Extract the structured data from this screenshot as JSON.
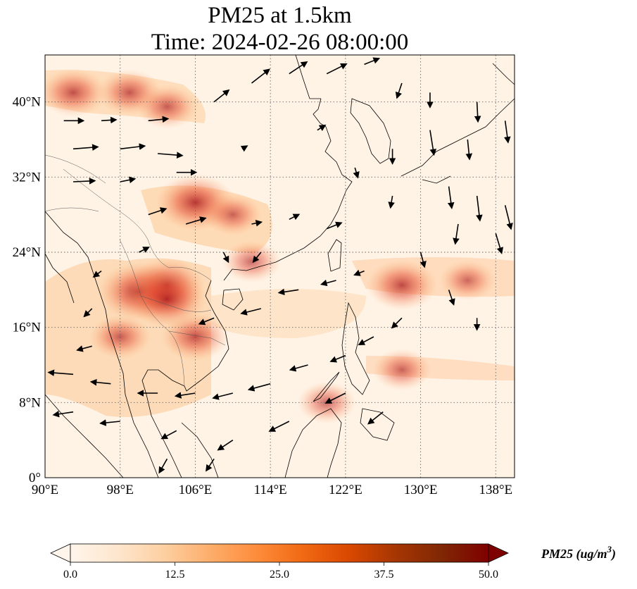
{
  "title": {
    "line1": "PM25 at 1.5km",
    "line2": "Time: 2024-02-26 08:00:00"
  },
  "map": {
    "extent": {
      "lon_min": 90,
      "lon_max": 140,
      "lat_min": 0,
      "lat_max": 45
    },
    "gridlines": "dotted",
    "x_ticks": [
      {
        "lon": 90,
        "label": "90°E"
      },
      {
        "lon": 98,
        "label": "98°E"
      },
      {
        "lon": 106,
        "label": "106°E"
      },
      {
        "lon": 114,
        "label": "114°E"
      },
      {
        "lon": 122,
        "label": "122°E"
      },
      {
        "lon": 130,
        "label": "130°E"
      },
      {
        "lon": 138,
        "label": "138°E"
      }
    ],
    "y_ticks": [
      {
        "lat": 0,
        "label": "0°"
      },
      {
        "lat": 8,
        "label": "8°N"
      },
      {
        "lat": 16,
        "label": "16°N"
      },
      {
        "lat": 24,
        "label": "24°N"
      },
      {
        "lat": 32,
        "label": "32°N"
      },
      {
        "lat": 40,
        "label": "40°N"
      }
    ],
    "hotspots": [
      {
        "lon": 93,
        "lat": 41,
        "intensity": 0.55
      },
      {
        "lon": 99,
        "lat": 41,
        "intensity": 0.5
      },
      {
        "lon": 103,
        "lat": 39.5,
        "intensity": 0.45
      },
      {
        "lon": 106,
        "lat": 29.3,
        "intensity": 0.75
      },
      {
        "lon": 110,
        "lat": 28,
        "intensity": 0.4
      },
      {
        "lon": 100,
        "lat": 19.8,
        "intensity": 0.8
      },
      {
        "lon": 103,
        "lat": 20.5,
        "intensity": 0.7
      },
      {
        "lon": 103,
        "lat": 19,
        "intensity": 0.75
      },
      {
        "lon": 106,
        "lat": 15,
        "intensity": 0.55
      },
      {
        "lon": 98,
        "lat": 15,
        "intensity": 0.45
      },
      {
        "lon": 128,
        "lat": 20.5,
        "intensity": 0.6
      },
      {
        "lon": 135,
        "lat": 21,
        "intensity": 0.35
      },
      {
        "lon": 128,
        "lat": 11.5,
        "intensity": 0.4
      },
      {
        "lon": 112,
        "lat": 23,
        "intensity": 0.4
      },
      {
        "lon": 120,
        "lat": 8,
        "intensity": 0.4
      }
    ],
    "wind_vectors": [
      {
        "lon": 92,
        "lat": 38,
        "u": 2,
        "v": 0
      },
      {
        "lon": 96,
        "lat": 38,
        "u": 1.5,
        "v": 0.1
      },
      {
        "lon": 101,
        "lat": 38,
        "u": 2,
        "v": 0.2
      },
      {
        "lon": 93,
        "lat": 35,
        "u": 2.5,
        "v": 0.2
      },
      {
        "lon": 98,
        "lat": 35,
        "u": 2.5,
        "v": 0.3
      },
      {
        "lon": 102,
        "lat": 34.5,
        "u": 2.5,
        "v": -0.2
      },
      {
        "lon": 93,
        "lat": 31.5,
        "u": 2.2,
        "v": 0.1
      },
      {
        "lon": 98,
        "lat": 31.5,
        "u": 1.5,
        "v": 0.3
      },
      {
        "lon": 104,
        "lat": 32.5,
        "u": 2,
        "v": 0
      },
      {
        "lon": 101,
        "lat": 28,
        "u": 1.8,
        "v": 0.6
      },
      {
        "lon": 105,
        "lat": 27,
        "u": 2,
        "v": 0.6
      },
      {
        "lon": 112,
        "lat": 27,
        "u": 1,
        "v": 0.2
      },
      {
        "lon": 116,
        "lat": 27.5,
        "u": 1,
        "v": 0.5
      },
      {
        "lon": 120,
        "lat": 26.5,
        "u": 1.5,
        "v": 0.6
      },
      {
        "lon": 108,
        "lat": 40,
        "u": 1.5,
        "v": 1.2
      },
      {
        "lon": 112,
        "lat": 42,
        "u": 1.8,
        "v": 1.4
      },
      {
        "lon": 116,
        "lat": 43,
        "u": 1.8,
        "v": 1.2
      },
      {
        "lon": 120,
        "lat": 43,
        "u": 2,
        "v": 1
      },
      {
        "lon": 124,
        "lat": 44,
        "u": 1.5,
        "v": 0.6
      },
      {
        "lon": 128,
        "lat": 42,
        "u": -0.5,
        "v": -1.5
      },
      {
        "lon": 131,
        "lat": 41,
        "u": 0,
        "v": -1.5
      },
      {
        "lon": 136,
        "lat": 40,
        "u": 0.1,
        "v": -2
      },
      {
        "lon": 131,
        "lat": 37,
        "u": 0.4,
        "v": -2.5
      },
      {
        "lon": 135,
        "lat": 36,
        "u": 0.2,
        "v": -2
      },
      {
        "lon": 139,
        "lat": 38,
        "u": 0.3,
        "v": -2.2
      },
      {
        "lon": 133,
        "lat": 31,
        "u": 0.3,
        "v": -2.2
      },
      {
        "lon": 136,
        "lat": 30,
        "u": 0.3,
        "v": -2.5
      },
      {
        "lon": 139,
        "lat": 29,
        "u": 0.6,
        "v": -2.4
      },
      {
        "lon": 134,
        "lat": 27,
        "u": -0.3,
        "v": -2
      },
      {
        "lon": 138,
        "lat": 26,
        "u": 0.6,
        "v": -2
      },
      {
        "lon": 130,
        "lat": 24,
        "u": 0.4,
        "v": -1.5
      },
      {
        "lon": 133,
        "lat": 20,
        "u": 0.5,
        "v": -1.5
      },
      {
        "lon": 136,
        "lat": 17,
        "u": 0,
        "v": -1.2
      },
      {
        "lon": 128,
        "lat": 17,
        "u": -1,
        "v": -1
      },
      {
        "lon": 125,
        "lat": 15,
        "u": -1.5,
        "v": -0.8
      },
      {
        "lon": 122,
        "lat": 13,
        "u": -1.5,
        "v": -0.6
      },
      {
        "lon": 118,
        "lat": 12,
        "u": -1.8,
        "v": -0.5
      },
      {
        "lon": 114,
        "lat": 10,
        "u": -2.2,
        "v": -0.6
      },
      {
        "lon": 110,
        "lat": 9,
        "u": -2,
        "v": -0.5
      },
      {
        "lon": 106,
        "lat": 9,
        "u": -2,
        "v": -0.3
      },
      {
        "lon": 102,
        "lat": 9,
        "u": -2,
        "v": 0
      },
      {
        "lon": 97,
        "lat": 10,
        "u": -2,
        "v": 0.2
      },
      {
        "lon": 93,
        "lat": 11,
        "u": -2.5,
        "v": 0.2
      },
      {
        "lon": 93,
        "lat": 7,
        "u": -2,
        "v": -0.3
      },
      {
        "lon": 98,
        "lat": 6,
        "u": -2,
        "v": -0.2
      },
      {
        "lon": 104,
        "lat": 5,
        "u": -1.5,
        "v": -0.8
      },
      {
        "lon": 110,
        "lat": 4,
        "u": -1.5,
        "v": -1
      },
      {
        "lon": 116,
        "lat": 6,
        "u": -2,
        "v": -1
      },
      {
        "lon": 122,
        "lat": 9,
        "u": -2,
        "v": -1
      },
      {
        "lon": 126,
        "lat": 7,
        "u": -1.5,
        "v": -1.2
      },
      {
        "lon": 108,
        "lat": 17,
        "u": -1.5,
        "v": -0.6
      },
      {
        "lon": 113,
        "lat": 18,
        "u": -2,
        "v": -0.5
      },
      {
        "lon": 117,
        "lat": 20,
        "u": -2,
        "v": -0.3
      },
      {
        "lon": 121,
        "lat": 21,
        "u": -1.5,
        "v": -0.4
      },
      {
        "lon": 124,
        "lat": 22,
        "u": -1,
        "v": -0.4
      },
      {
        "lon": 96,
        "lat": 22,
        "u": -0.8,
        "v": -0.6
      },
      {
        "lon": 100,
        "lat": 24,
        "u": 1,
        "v": 0.5
      },
      {
        "lon": 109,
        "lat": 24,
        "u": 0.5,
        "v": -1
      },
      {
        "lon": 113,
        "lat": 24,
        "u": -0.8,
        "v": -1
      },
      {
        "lon": 95,
        "lat": 18,
        "u": -0.8,
        "v": -0.8
      },
      {
        "lon": 95,
        "lat": 14,
        "u": -1.5,
        "v": -0.4
      },
      {
        "lon": 108,
        "lat": 2,
        "u": -0.8,
        "v": -1.2
      },
      {
        "lon": 103,
        "lat": 2,
        "u": -0.8,
        "v": -1.4
      },
      {
        "lon": 127,
        "lat": 30,
        "u": -0.2,
        "v": -1.2
      },
      {
        "lon": 127,
        "lat": 35,
        "u": 0,
        "v": -1.5
      },
      {
        "lon": 123,
        "lat": 33,
        "u": 0.3,
        "v": -1
      },
      {
        "lon": 119,
        "lat": 37,
        "u": 0.8,
        "v": 0.5
      },
      {
        "lon": 111,
        "lat": 35,
        "u": 0.5,
        "v": 0.3
      }
    ]
  },
  "colorbar": {
    "title_prefix": "PM25 (ug/m",
    "title_superscript": "3",
    "title_suffix": ")",
    "vmin": 0,
    "vmax": 50,
    "tick_labels": [
      "0.0",
      "12.5",
      "25.0",
      "37.5",
      "50.0"
    ],
    "colors": [
      "#fff5eb",
      "#fee6ce",
      "#fdd0a2",
      "#fdae6b",
      "#fd8d3c",
      "#f16913",
      "#d94801",
      "#a63603",
      "#7f2704",
      "#7f0000"
    ]
  }
}
